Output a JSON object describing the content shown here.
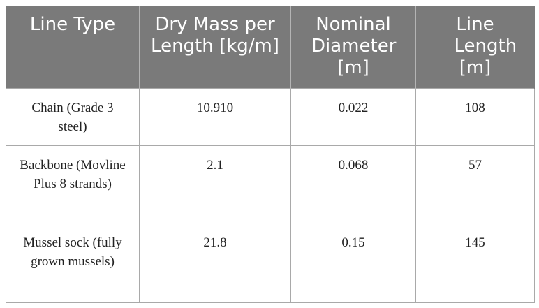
{
  "table": {
    "headers": [
      "Line Type",
      "Dry Mass per Length [kg/m]",
      "Nominal Diameter [m]",
      "Line Length [m]"
    ],
    "rows": [
      [
        "Chain (Grade 3 steel)",
        "10.910",
        "0.022",
        "108"
      ],
      [
        "Backbone (Movline Plus 8 strands)",
        "2.1",
        "0.068",
        "57"
      ],
      [
        "Mussel sock (fully grown mussels)",
        "21.8",
        "0.15",
        "145"
      ]
    ]
  },
  "colors": {
    "header_background": "#7a7a7a",
    "header_text": "#ffffff",
    "border": "#a9a9a9",
    "body_text": "#222222"
  }
}
